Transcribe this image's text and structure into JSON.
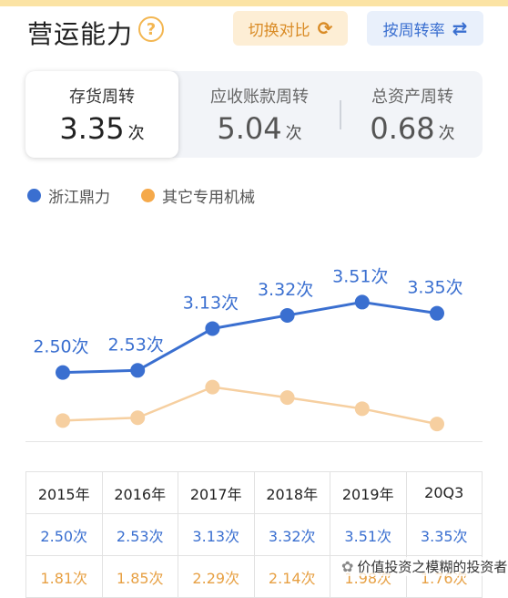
{
  "header": {
    "title": "营运能力",
    "help_icon": "?",
    "switch_compare": "切换对比",
    "by_period_turnover": "按周转率"
  },
  "metrics": [
    {
      "label": "存货周转",
      "value": "3.35",
      "unit": "次",
      "active": true
    },
    {
      "label": "应收账款周转",
      "value": "5.04",
      "unit": "次",
      "active": false
    },
    {
      "label": "总资产周转",
      "value": "0.68",
      "unit": "次",
      "active": false
    }
  ],
  "colors": {
    "primary": "#3a6fd0",
    "secondary": "#f6cfa0",
    "secondary_text": "#e7a043"
  },
  "chart_data": {
    "type": "line",
    "categories": [
      "2015年",
      "2016年",
      "2017年",
      "2018年",
      "2019年",
      "20Q3"
    ],
    "series": [
      {
        "name": "浙江鼎力",
        "values": [
          2.5,
          2.53,
          3.13,
          3.32,
          3.51,
          3.35
        ],
        "labels": [
          "2.50次",
          "2.53次",
          "3.13次",
          "3.32次",
          "3.51次",
          "3.35次"
        ]
      },
      {
        "name": "其它专用机械",
        "values": [
          1.81,
          1.85,
          2.29,
          2.14,
          1.98,
          1.76
        ]
      }
    ],
    "legend_position": "top-left",
    "grid": false
  },
  "table": {
    "headers": [
      "2015年",
      "2016年",
      "2017年",
      "2018年",
      "2019年",
      "20Q3"
    ],
    "rows": [
      [
        "2.50次",
        "2.53次",
        "3.13次",
        "3.32次",
        "3.51次",
        "3.35次"
      ],
      [
        "1.81次",
        "1.85次",
        "2.29次",
        "2.14次",
        "1.98次",
        "1.76次"
      ]
    ]
  },
  "watermark": {
    "text": "价值投资之模糊的投资者"
  }
}
